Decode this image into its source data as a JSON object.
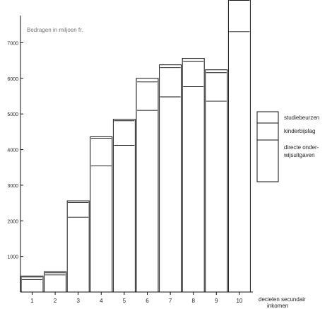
{
  "chart_data": {
    "type": "bar",
    "title": "Bedragen in miljoen fr.",
    "xlabel_lines": [
      "decielen secundair",
      "inkomen"
    ],
    "categories": [
      "1",
      "2",
      "3",
      "4",
      "5",
      "6",
      "7",
      "8",
      "9",
      "10"
    ],
    "y_ticks": [
      {
        "label": "1000",
        "value": 1000
      },
      {
        "label": "2000",
        "value": 2000
      },
      {
        "label": "3000",
        "value": 3000
      },
      {
        "label": "4000",
        "value": 4000
      },
      {
        "label": "5000",
        "value": 5000
      },
      {
        "label": "6000",
        "value": 6000
      },
      {
        "label": "7000",
        "value": 7000
      }
    ],
    "ylim": [
      0,
      8200
    ],
    "series": [
      {
        "name": "directe onderwijsuitgaven",
        "values": [
          350,
          480,
          2100,
          3540,
          4120,
          5100,
          5480,
          5770,
          5360,
          7310
        ]
      },
      {
        "name": "kinderbijslag",
        "values": [
          420,
          540,
          2510,
          4320,
          4810,
          5900,
          6300,
          6480,
          6160,
          8190
        ]
      },
      {
        "name": "studiebeurzen",
        "values": [
          450,
          570,
          2560,
          4360,
          4850,
          6000,
          6380,
          6560,
          6240,
          8260
        ]
      }
    ],
    "legend": {
      "placement": "right",
      "entries": [
        {
          "lines": [
            "studiebeurzen"
          ]
        },
        {
          "lines": [
            "kinderbijslag"
          ]
        },
        {
          "lines": [
            "directe onder-",
            "wijsuitgaven"
          ]
        }
      ]
    },
    "grid": false
  }
}
